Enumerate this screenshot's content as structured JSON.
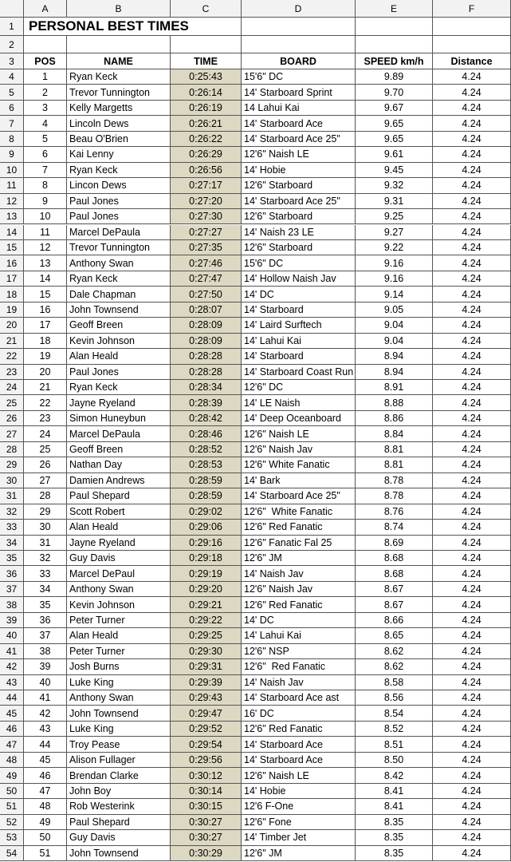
{
  "title": "PERSONAL BEST TIMES",
  "column_letters": [
    "A",
    "B",
    "C",
    "D",
    "E",
    "F"
  ],
  "row_numbers": [
    1,
    2,
    3,
    4,
    5,
    6,
    7,
    8,
    9,
    10,
    11,
    12,
    13,
    14,
    15,
    16,
    17,
    18,
    19,
    20,
    21,
    22,
    23,
    24,
    25,
    26,
    27,
    28,
    29,
    30,
    31,
    32,
    33,
    34,
    35,
    36,
    37,
    38,
    39,
    40,
    41,
    42,
    43,
    44,
    45,
    46,
    47,
    48,
    49,
    50,
    51,
    52,
    53,
    54
  ],
  "table": {
    "header": [
      "POS",
      "NAME",
      "TIME",
      "BOARD",
      "SPEED km/h",
      "Distance"
    ],
    "rows": [
      [
        "1",
        "Ryan Keck",
        "0:25:43",
        "15'6\" DC",
        "9.89",
        "4.24"
      ],
      [
        "2",
        "Trevor Tunnington",
        "0:26:14",
        "14' Starboard Sprint",
        "9.70",
        "4.24"
      ],
      [
        "3",
        "Kelly Margetts",
        "0:26:19",
        "14 Lahui Kai",
        "9.67",
        "4.24"
      ],
      [
        "4",
        "Lincoln Dews",
        "0:26:21",
        "14' Starboard Ace",
        "9.65",
        "4.24"
      ],
      [
        "5",
        "Beau O'Brien",
        "0:26:22",
        "14' Starboard Ace 25\"",
        "9.65",
        "4.24"
      ],
      [
        "6",
        "Kai Lenny",
        "0:26:29",
        "12'6\" Naish LE",
        "9.61",
        "4.24"
      ],
      [
        "7",
        "Ryan Keck",
        "0:26:56",
        "14' Hobie",
        "9.45",
        "4.24"
      ],
      [
        "8",
        "Lincon Dews",
        "0:27:17",
        "12'6\" Starboard",
        "9.32",
        "4.24"
      ],
      [
        "9",
        "Paul Jones",
        "0:27:20",
        "14' Starboard Ace 25\"",
        "9.31",
        "4.24"
      ],
      [
        "10",
        "Paul Jones",
        "0:27:30",
        "12'6\" Starboard",
        "9.25",
        "4.24"
      ],
      [
        "11",
        "Marcel DePaula",
        "0:27:27",
        "14' Naish 23 LE",
        "9.27",
        "4.24"
      ],
      [
        "12",
        "Trevor Tunnington",
        "0:27:35",
        "12'6\" Starboard",
        "9.22",
        "4.24"
      ],
      [
        "13",
        "Anthony Swan",
        "0:27:46",
        "15'6\" DC",
        "9.16",
        "4.24"
      ],
      [
        "14",
        "Ryan Keck",
        "0:27:47",
        "14' Hollow Naish Jav",
        "9.16",
        "4.24"
      ],
      [
        "15",
        "Dale Chapman",
        "0:27:50",
        "14' DC",
        "9.14",
        "4.24"
      ],
      [
        "16",
        "John Townsend",
        "0:28:07",
        "14' Starboard",
        "9.05",
        "4.24"
      ],
      [
        "17",
        "Geoff Breen",
        "0:28:09",
        "14' Laird Surftech",
        "9.04",
        "4.24"
      ],
      [
        "18",
        "Kevin Johnson",
        "0:28:09",
        "14' Lahui Kai",
        "9.04",
        "4.24"
      ],
      [
        "19",
        "Alan Heald",
        "0:28:28",
        "14' Starboard",
        "8.94",
        "4.24"
      ],
      [
        "20",
        "Paul Jones",
        "0:28:28",
        "14' Starboard Coast Run",
        "8.94",
        "4.24"
      ],
      [
        "21",
        "Ryan Keck",
        "0:28:34",
        "12'6\" DC",
        "8.91",
        "4.24"
      ],
      [
        "22",
        "Jayne Ryeland",
        "0:28:39",
        "14' LE Naish",
        "8.88",
        "4.24"
      ],
      [
        "23",
        "Simon Huneybun",
        "0:28:42",
        "14' Deep Oceanboard",
        "8.86",
        "4.24"
      ],
      [
        "24",
        "Marcel DePaula",
        "0:28:46",
        "12'6\" Naish LE",
        "8.84",
        "4.24"
      ],
      [
        "25",
        "Geoff Breen",
        "0:28:52",
        "12'6\" Naish Jav",
        "8.81",
        "4.24"
      ],
      [
        "26",
        "Nathan Day",
        "0:28:53",
        "12'6\" White Fanatic",
        "8.81",
        "4.24"
      ],
      [
        "27",
        "Damien Andrews",
        "0:28:59",
        "14' Bark",
        "8.78",
        "4.24"
      ],
      [
        "28",
        "Paul Shepard",
        "0:28:59",
        "14' Starboard Ace 25\"",
        "8.78",
        "4.24"
      ],
      [
        "29",
        "Scott Robert",
        "0:29:02",
        "12'6\"  White Fanatic",
        "8.76",
        "4.24"
      ],
      [
        "30",
        "Alan Heald",
        "0:29:06",
        "12'6\" Red Fanatic",
        "8.74",
        "4.24"
      ],
      [
        "31",
        "Jayne Ryeland",
        "0:29:16",
        "12'6\" Fanatic Fal 25",
        "8.69",
        "4.24"
      ],
      [
        "32",
        "Guy Davis",
        "0:29:18",
        "12'6\" JM",
        "8.68",
        "4.24"
      ],
      [
        "33",
        "Marcel DePaul",
        "0:29:19",
        "14' Naish Jav",
        "8.68",
        "4.24"
      ],
      [
        "34",
        "Anthony Swan",
        "0:29:20",
        "12'6\" Naish Jav",
        "8.67",
        "4.24"
      ],
      [
        "35",
        "Kevin Johnson",
        "0:29:21",
        "12'6\" Red Fanatic",
        "8.67",
        "4.24"
      ],
      [
        "36",
        "Peter Turner",
        "0:29:22",
        "14' DC",
        "8.66",
        "4.24"
      ],
      [
        "37",
        "Alan Heald",
        "0:29:25",
        "14' Lahui Kai",
        "8.65",
        "4.24"
      ],
      [
        "38",
        "Peter Turner",
        "0:29:30",
        "12'6\" NSP",
        "8.62",
        "4.24"
      ],
      [
        "39",
        "Josh Burns",
        "0:29:31",
        "12'6\"  Red Fanatic",
        "8.62",
        "4.24"
      ],
      [
        "40",
        "Luke King",
        "0:29:39",
        "14' Naish Jav",
        "8.58",
        "4.24"
      ],
      [
        "41",
        "Anthony Swan",
        "0:29:43",
        "14' Starboard Ace ast",
        "8.56",
        "4.24"
      ],
      [
        "42",
        "John Townsend",
        "0:29:47",
        "16' DC",
        "8.54",
        "4.24"
      ],
      [
        "43",
        "Luke King",
        "0:29:52",
        "12'6\" Red Fanatic",
        "8.52",
        "4.24"
      ],
      [
        "44",
        "Troy Pease",
        "0:29:54",
        "14' Starboard Ace",
        "8.51",
        "4.24"
      ],
      [
        "45",
        "Alison Fullager",
        "0:29:56",
        "14' Starboard Ace",
        "8.50",
        "4.24"
      ],
      [
        "46",
        "Brendan Clarke",
        "0:30:12",
        "12'6\" Naish LE",
        "8.42",
        "4.24"
      ],
      [
        "47",
        "John Boy",
        "0:30:14",
        "14' Hobie",
        "8.41",
        "4.24"
      ],
      [
        "48",
        "Rob Westerink",
        "0:30:15",
        "12'6 F-One",
        "8.41",
        "4.24"
      ],
      [
        "49",
        "Paul Shepard",
        "0:30:27",
        "12'6\" Fone",
        "8.35",
        "4.24"
      ],
      [
        "50",
        "Guy Davis",
        "0:30:27",
        "14' Timber Jet",
        "8.35",
        "4.24"
      ],
      [
        "51",
        "John Townsend",
        "0:30:29",
        "12'6\" JM",
        "8.35",
        "4.24"
      ]
    ]
  }
}
